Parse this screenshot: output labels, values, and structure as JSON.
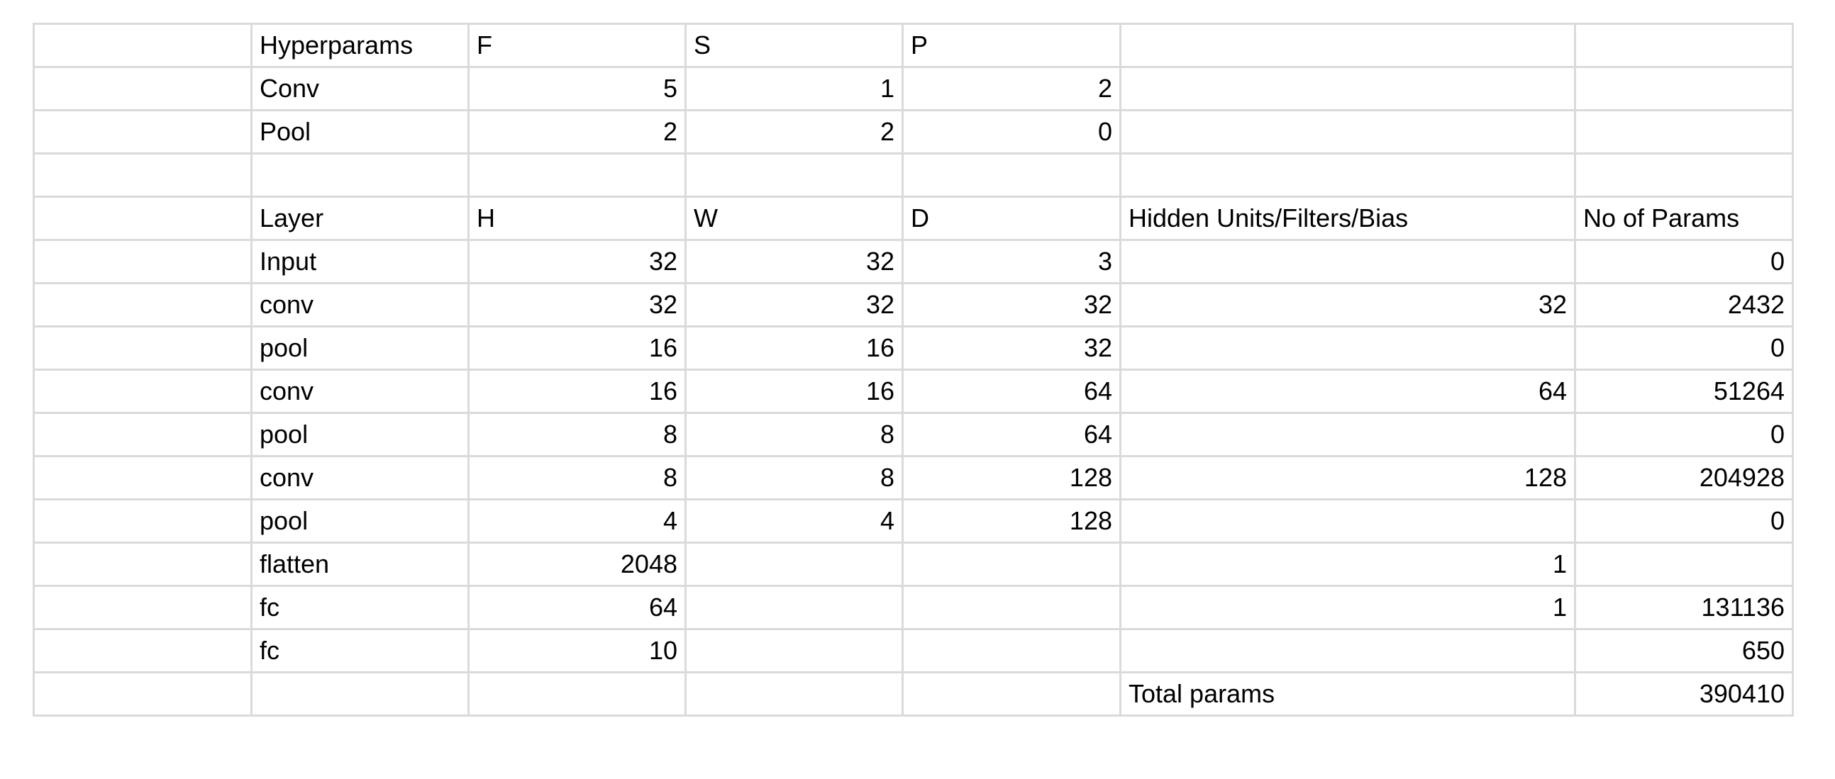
{
  "sheet": {
    "rows": [
      [
        "",
        "Hyperparams",
        "F",
        "S",
        "P",
        "",
        ""
      ],
      [
        "",
        "Conv",
        "5",
        "1",
        "2",
        "",
        ""
      ],
      [
        "",
        "Pool",
        "2",
        "2",
        "0",
        "",
        ""
      ],
      [
        "",
        "",
        "",
        "",
        "",
        "",
        ""
      ],
      [
        "",
        "Layer",
        "H",
        "W",
        "D",
        "Hidden Units/Filters/Bias",
        "No of Params"
      ],
      [
        "",
        "Input",
        "32",
        "32",
        "3",
        "",
        "0"
      ],
      [
        "",
        "conv",
        "32",
        "32",
        "32",
        "32",
        "2432"
      ],
      [
        "",
        "pool",
        "16",
        "16",
        "32",
        "",
        "0"
      ],
      [
        "",
        "conv",
        "16",
        "16",
        "64",
        "64",
        "51264"
      ],
      [
        "",
        "pool",
        "8",
        "8",
        "64",
        "",
        "0"
      ],
      [
        "",
        "conv",
        "8",
        "8",
        "128",
        "128",
        "204928"
      ],
      [
        "",
        "pool",
        "4",
        "4",
        "128",
        "",
        "0"
      ],
      [
        "",
        "flatten",
        "2048",
        "",
        "",
        "1",
        ""
      ],
      [
        "",
        "fc",
        "64",
        "",
        "",
        "1",
        "131136"
      ],
      [
        "",
        "fc",
        "10",
        "",
        "",
        "",
        "650"
      ],
      [
        "",
        "",
        "",
        "",
        "",
        "Total params",
        "390410"
      ]
    ]
  }
}
